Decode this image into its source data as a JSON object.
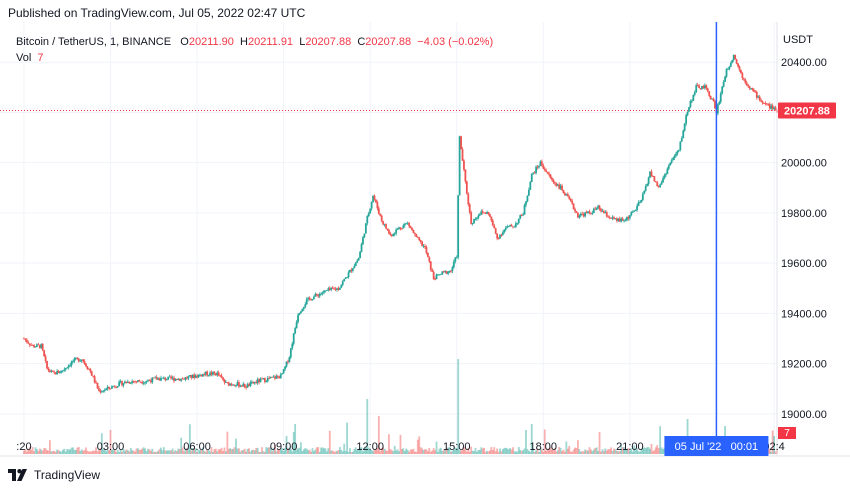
{
  "header": {
    "published_text": "Published on TradingView.com, Jul 05, 2022 02:47 UTC"
  },
  "legend": {
    "symbol": "Bitcoin / TetherUS, 1, BINANCE",
    "o_label": "O",
    "o_value": "20211.90",
    "h_label": "H",
    "h_value": "20211.91",
    "l_label": "L",
    "l_value": "20207.88",
    "c_label": "C",
    "c_value": "20207.88",
    "change": "−4.03 (−0.02%)",
    "vol_label": "Vol",
    "vol_value": "7"
  },
  "footer": {
    "brand": "TradingView",
    "logo_icon": "tradingview-logo-icon"
  },
  "colors": {
    "up": "#26a69a",
    "down": "#ef5350",
    "crosshair": "#2962ff",
    "price_line": "#f23645",
    "grid": "#f0f3fa"
  },
  "chart_data": {
    "type": "candlestick",
    "currency_label": "USDT",
    "ylim": [
      18920,
      20560
    ],
    "y_ticks": [
      19000,
      19200,
      19400,
      19600,
      19800,
      20000,
      20200,
      20400
    ],
    "y_tick_labels": [
      "19000.00",
      "19200.00",
      "19400.00",
      "19600.00",
      "19800.00",
      "20000.00",
      "",
      "20400.00"
    ],
    "x_range_hours": [
      -0.83,
      26.1
    ],
    "x_ticks": [
      {
        "h": 0,
        "label": ":20"
      },
      {
        "h": 3,
        "label": "03:00"
      },
      {
        "h": 6,
        "label": "06:00"
      },
      {
        "h": 9,
        "label": "09:00"
      },
      {
        "h": 12,
        "label": "12:00"
      },
      {
        "h": 15,
        "label": "15:00"
      },
      {
        "h": 18,
        "label": "18:00"
      },
      {
        "h": 21,
        "label": "21:00"
      },
      {
        "h": 26,
        "label": "02:4"
      }
    ],
    "last_price": 20207.88,
    "last_price_label": "20207.88",
    "last_volume_label": "7",
    "crosshair": {
      "h": 24.0,
      "label": "05 Jul '22   00:01"
    },
    "price_path": [
      [
        0,
        19300
      ],
      [
        0.3,
        19270
      ],
      [
        0.6,
        19270
      ],
      [
        0.8,
        19180
      ],
      [
        1.0,
        19160
      ],
      [
        1.3,
        19170
      ],
      [
        1.7,
        19210
      ],
      [
        2.0,
        19220
      ],
      [
        2.3,
        19170
      ],
      [
        2.6,
        19090
      ],
      [
        2.9,
        19100
      ],
      [
        3.3,
        19120
      ],
      [
        3.7,
        19130
      ],
      [
        4.2,
        19130
      ],
      [
        4.6,
        19140
      ],
      [
        5.0,
        19140
      ],
      [
        5.5,
        19140
      ],
      [
        5.9,
        19150
      ],
      [
        6.3,
        19160
      ],
      [
        6.7,
        19160
      ],
      [
        7.0,
        19120
      ],
      [
        7.3,
        19120
      ],
      [
        7.7,
        19110
      ],
      [
        8.1,
        19130
      ],
      [
        8.5,
        19140
      ],
      [
        8.9,
        19150
      ],
      [
        9.0,
        19170
      ],
      [
        9.2,
        19230
      ],
      [
        9.5,
        19400
      ],
      [
        9.8,
        19450
      ],
      [
        10.1,
        19470
      ],
      [
        10.5,
        19490
      ],
      [
        10.9,
        19500
      ],
      [
        11.2,
        19550
      ],
      [
        11.6,
        19620
      ],
      [
        11.9,
        19780
      ],
      [
        12.1,
        19870
      ],
      [
        12.4,
        19770
      ],
      [
        12.7,
        19710
      ],
      [
        13.0,
        19740
      ],
      [
        13.3,
        19760
      ],
      [
        13.6,
        19700
      ],
      [
        13.9,
        19660
      ],
      [
        14.2,
        19540
      ],
      [
        14.5,
        19560
      ],
      [
        14.8,
        19570
      ],
      [
        15.0,
        19630
      ],
      [
        15.1,
        20100
      ],
      [
        15.3,
        19920
      ],
      [
        15.5,
        19760
      ],
      [
        15.8,
        19800
      ],
      [
        16.1,
        19800
      ],
      [
        16.4,
        19700
      ],
      [
        16.7,
        19740
      ],
      [
        17.0,
        19750
      ],
      [
        17.3,
        19800
      ],
      [
        17.6,
        19950
      ],
      [
        17.9,
        20000
      ],
      [
        18.3,
        19930
      ],
      [
        18.6,
        19900
      ],
      [
        18.9,
        19850
      ],
      [
        19.2,
        19790
      ],
      [
        19.6,
        19800
      ],
      [
        19.9,
        19820
      ],
      [
        20.2,
        19790
      ],
      [
        20.5,
        19770
      ],
      [
        20.8,
        19770
      ],
      [
        21.1,
        19800
      ],
      [
        21.4,
        19850
      ],
      [
        21.7,
        19960
      ],
      [
        22.0,
        19900
      ],
      [
        22.4,
        20000
      ],
      [
        22.7,
        20050
      ],
      [
        23.0,
        20210
      ],
      [
        23.3,
        20300
      ],
      [
        23.6,
        20300
      ],
      [
        23.9,
        20240
      ],
      [
        24.0,
        20200
      ],
      [
        24.3,
        20350
      ],
      [
        24.6,
        20430
      ],
      [
        24.9,
        20340
      ],
      [
        25.3,
        20280
      ],
      [
        25.6,
        20240
      ],
      [
        25.9,
        20220
      ],
      [
        26.1,
        20207.88
      ]
    ]
  }
}
